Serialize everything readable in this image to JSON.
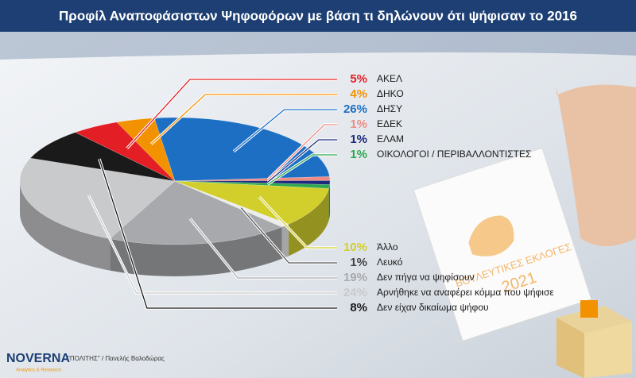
{
  "chart_data": {
    "type": "pie",
    "title": "Προφίλ Αναποφάσιστων Ψηφοφόρων με βάση τι δηλώνουν ότι ψήφισαν το 2016",
    "categories": [
      "ΑΚΕΛ",
      "ΔΗΚΟ",
      "ΔΗΣΥ",
      "ΕΔΕΚ",
      "ΕΛΑΜ",
      "ΟΙΚΟΛΟΓΟΙ / ΠΕΡΙΒΑΛΛΟΝΤΙΣΤΕΣ",
      "Άλλο",
      "Λευκό",
      "Δεν πήγα να ψηφίσουν",
      "Αρνήθηκε να αναφέρει κόμμα που ψήφισε",
      "Δεν είχαν δικαίωμα ψήφου"
    ],
    "values": [
      5,
      4,
      26,
      1,
      1,
      1,
      10,
      1,
      19,
      24,
      8
    ],
    "value_labels": [
      "5%",
      "4%",
      "26%",
      "1%",
      "1%",
      "1%",
      "10%",
      "1%",
      "19%",
      "24%",
      "8%"
    ],
    "colors": [
      "#e31e24",
      "#f39200",
      "#1d6fc4",
      "#f08a84",
      "#1b2a7a",
      "#2fa84f",
      "#d2cf2c",
      "#ececec",
      "#a7a9ac",
      "#c9cacc",
      "#1a1a1a"
    ]
  },
  "footer": {
    "brand": "NOVERNA",
    "tagline": "Analytics & Research",
    "credit": "\"ΠΟΛΙΤΗΣ\" / Πανελής Βαλοδώρας"
  },
  "ballot": {
    "text": "ΒΟΥΛΕΥΤΙΚΕΣ ΕΚΛΟΓΕΣ",
    "year": "2021"
  }
}
